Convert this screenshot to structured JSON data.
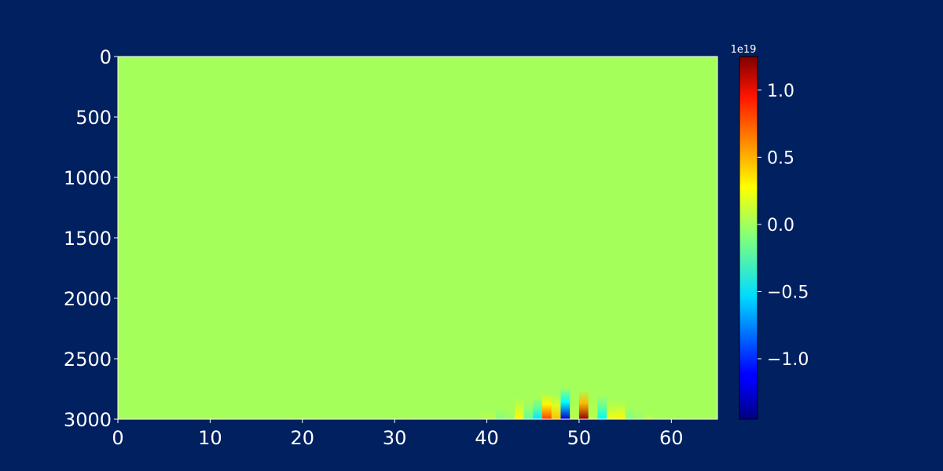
{
  "figure": {
    "background": "#002060",
    "text_color": "#ffffff"
  },
  "chart_data": {
    "type": "heatmap",
    "title": "",
    "xlabel": "",
    "ylabel": "",
    "xlim": [
      0,
      65
    ],
    "ylim": [
      3000,
      0
    ],
    "y_inverted": true,
    "x_ticks": [
      0,
      10,
      20,
      30,
      40,
      50,
      60
    ],
    "y_ticks": [
      0,
      500,
      1000,
      1500,
      2000,
      2500,
      3000
    ],
    "background_value": 0,
    "colormap": "jet",
    "colorbar": {
      "range": [
        -1.45e+19,
        1.25e+19
      ],
      "ticks": [
        -1.0,
        -0.5,
        0.0,
        0.5,
        1.0
      ],
      "tick_labels": [
        "−1.0",
        "−0.5",
        "0.0",
        "0.5",
        "1.0"
      ],
      "offset_label": "1e19"
    },
    "features": [
      {
        "x": 39.5,
        "value": 3e+17,
        "top_depth": 2940
      },
      {
        "x": 40.5,
        "value": 5e+17,
        "top_depth": 2920
      },
      {
        "x": 41.5,
        "value": -1e+18,
        "top_depth": 2900
      },
      {
        "x": 42.5,
        "value": -4e+17,
        "top_depth": 2920
      },
      {
        "x": 43.5,
        "value": 2.5e+18,
        "top_depth": 2820
      },
      {
        "x": 44.5,
        "value": -2e+18,
        "top_depth": 2860
      },
      {
        "x": 45.5,
        "value": -5e+18,
        "top_depth": 2820
      },
      {
        "x": 46.5,
        "value": 7.5e+18,
        "top_depth": 2780
      },
      {
        "x": 47.5,
        "value": 4e+18,
        "top_depth": 2790
      },
      {
        "x": 48.5,
        "value": -1.25e+19,
        "top_depth": 2740
      },
      {
        "x": 49.5,
        "value": 5e+17,
        "top_depth": 2800
      },
      {
        "x": 50.5,
        "value": 1.2e+19,
        "top_depth": 2760
      },
      {
        "x": 51.5,
        "value": 5e+17,
        "top_depth": 2820
      },
      {
        "x": 52.5,
        "value": -4.5e+18,
        "top_depth": 2800
      },
      {
        "x": 53.5,
        "value": 2e+18,
        "top_depth": 2840
      },
      {
        "x": 54.5,
        "value": 2.5e+18,
        "top_depth": 2840
      },
      {
        "x": 55.5,
        "value": -1e+18,
        "top_depth": 2880
      },
      {
        "x": 56.5,
        "value": -4e+17,
        "top_depth": 2900
      },
      {
        "x": 57.5,
        "value": 4e+17,
        "top_depth": 2930
      }
    ]
  }
}
